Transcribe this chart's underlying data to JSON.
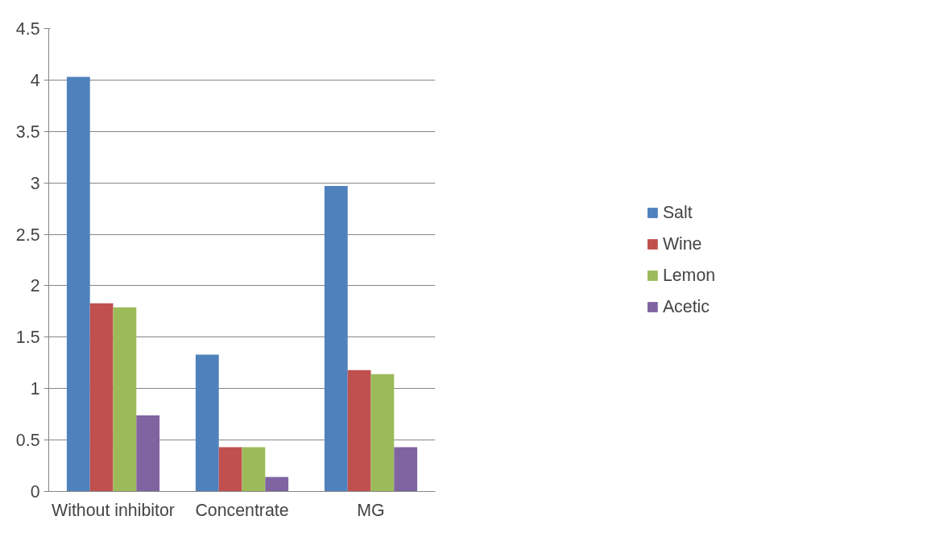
{
  "chart_data": {
    "type": "bar",
    "categories": [
      "Without inhibitor",
      "Concentrate",
      "MG"
    ],
    "series": [
      {
        "name": "Salt",
        "color": "#4f81bd",
        "values": [
          4.03,
          1.33,
          2.97
        ]
      },
      {
        "name": "Wine",
        "color": "#c0504d",
        "values": [
          1.83,
          0.43,
          1.18
        ]
      },
      {
        "name": "Lemon",
        "color": "#9bbb59",
        "values": [
          1.79,
          0.43,
          1.14
        ]
      },
      {
        "name": "Acetic",
        "color": "#8064a2",
        "values": [
          0.74,
          0.14,
          0.43
        ]
      }
    ],
    "ylim": [
      0,
      4.5
    ],
    "yticks": [
      0,
      0.5,
      1,
      1.5,
      2,
      2.5,
      3,
      3.5,
      4,
      4.5
    ],
    "grid": "y",
    "legend": "right"
  }
}
